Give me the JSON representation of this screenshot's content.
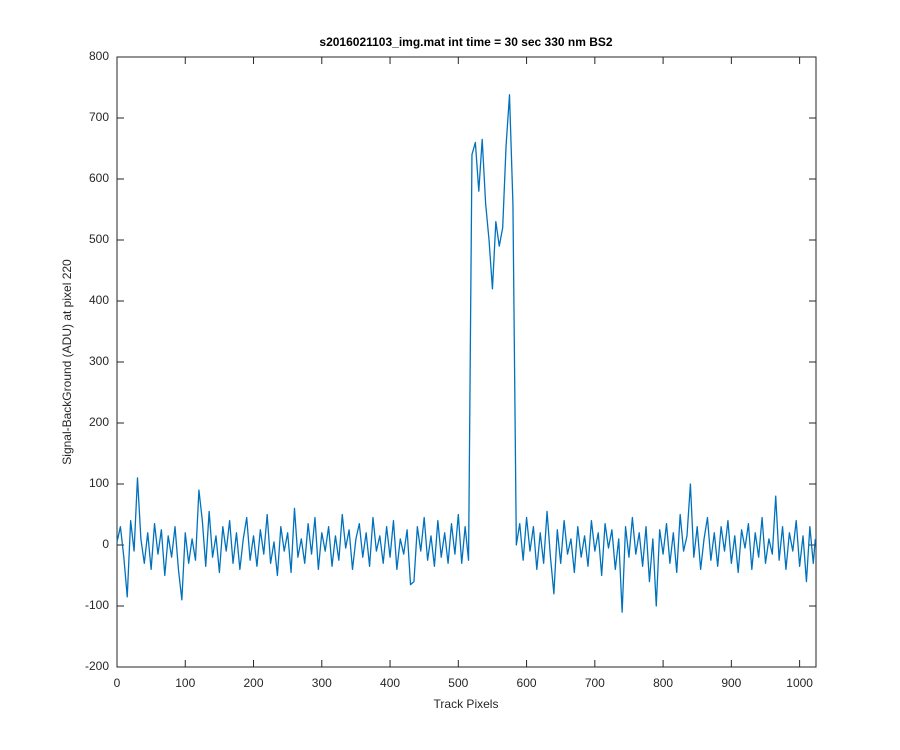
{
  "chart_data": {
    "type": "line",
    "title": "s2016021103_img.mat int time = 30 sec  330 nm BS2",
    "x_label": "Track Pixels",
    "y_label": "Signal-BackGround (ADU) at pixel 220",
    "color": "#0072bd",
    "grid": false,
    "xlim": [
      0,
      1024
    ],
    "ylim": [
      -200,
      800
    ],
    "xticks": [
      0,
      100,
      200,
      300,
      400,
      500,
      600,
      700,
      800,
      900,
      1000
    ],
    "yticks": [
      -200,
      -100,
      0,
      100,
      200,
      300,
      400,
      500,
      600,
      700,
      800
    ],
    "x": [
      0,
      5,
      10,
      15,
      20,
      25,
      30,
      35,
      40,
      45,
      50,
      55,
      60,
      65,
      70,
      75,
      80,
      85,
      90,
      95,
      100,
      105,
      110,
      115,
      120,
      125,
      130,
      135,
      140,
      145,
      150,
      155,
      160,
      165,
      170,
      175,
      180,
      185,
      190,
      195,
      200,
      205,
      210,
      215,
      220,
      225,
      230,
      235,
      240,
      245,
      250,
      255,
      260,
      265,
      270,
      275,
      280,
      285,
      290,
      295,
      300,
      305,
      310,
      315,
      320,
      325,
      330,
      335,
      340,
      345,
      350,
      355,
      360,
      365,
      370,
      375,
      380,
      385,
      390,
      395,
      400,
      405,
      410,
      415,
      420,
      425,
      430,
      435,
      440,
      445,
      450,
      455,
      460,
      465,
      470,
      475,
      480,
      485,
      490,
      495,
      500,
      505,
      510,
      515,
      520,
      525,
      530,
      535,
      540,
      545,
      550,
      555,
      560,
      565,
      570,
      575,
      580,
      585,
      590,
      595,
      600,
      605,
      610,
      615,
      620,
      625,
      630,
      635,
      640,
      645,
      650,
      655,
      660,
      665,
      670,
      675,
      680,
      685,
      690,
      695,
      700,
      705,
      710,
      715,
      720,
      725,
      730,
      735,
      740,
      745,
      750,
      755,
      760,
      765,
      770,
      775,
      780,
      785,
      790,
      795,
      800,
      805,
      810,
      815,
      820,
      825,
      830,
      835,
      840,
      845,
      850,
      855,
      860,
      865,
      870,
      875,
      880,
      885,
      890,
      895,
      900,
      905,
      910,
      915,
      920,
      925,
      930,
      935,
      940,
      945,
      950,
      955,
      960,
      965,
      970,
      975,
      980,
      985,
      990,
      995,
      1000,
      1005,
      1010,
      1015,
      1020,
      1023
    ],
    "values": [
      5,
      30,
      -20,
      -85,
      40,
      -10,
      110,
      10,
      -30,
      20,
      -40,
      35,
      -15,
      25,
      -50,
      15,
      -20,
      30,
      -40,
      -90,
      20,
      -30,
      10,
      -25,
      90,
      40,
      -35,
      55,
      -20,
      15,
      -45,
      30,
      -10,
      40,
      -30,
      20,
      -40,
      10,
      45,
      -25,
      15,
      -35,
      25,
      -15,
      50,
      -30,
      5,
      -50,
      30,
      -10,
      20,
      -45,
      60,
      -20,
      10,
      -30,
      35,
      -15,
      45,
      -40,
      20,
      -10,
      30,
      -35,
      15,
      -25,
      50,
      -5,
      25,
      -40,
      10,
      35,
      -20,
      20,
      -35,
      45,
      -10,
      15,
      -30,
      30,
      -20,
      40,
      -40,
      10,
      -15,
      25,
      -65,
      -60,
      30,
      -10,
      45,
      -25,
      15,
      -35,
      40,
      -20,
      20,
      -30,
      35,
      -15,
      50,
      -30,
      30,
      -25,
      640,
      660,
      580,
      665,
      560,
      500,
      420,
      530,
      490,
      520,
      655,
      738,
      560,
      0,
      35,
      -25,
      45,
      -10,
      30,
      -40,
      20,
      -30,
      55,
      -20,
      -80,
      25,
      -30,
      40,
      -15,
      10,
      -45,
      30,
      -20,
      15,
      -35,
      40,
      -10,
      20,
      -50,
      35,
      -5,
      25,
      -40,
      10,
      -110,
      30,
      -20,
      45,
      -15,
      20,
      -35,
      30,
      -60,
      10,
      -100,
      25,
      -15,
      35,
      -30,
      20,
      -45,
      50,
      -10,
      15,
      100,
      -20,
      30,
      -40,
      10,
      45,
      -25,
      20,
      -35,
      30,
      -10,
      40,
      -30,
      15,
      -45,
      25,
      -5,
      35,
      -40,
      20,
      -20,
      45,
      -30,
      10,
      -15,
      80,
      -25,
      30,
      -40,
      20,
      -10,
      40,
      -35,
      15,
      -60,
      30,
      -30,
      10
    ]
  }
}
